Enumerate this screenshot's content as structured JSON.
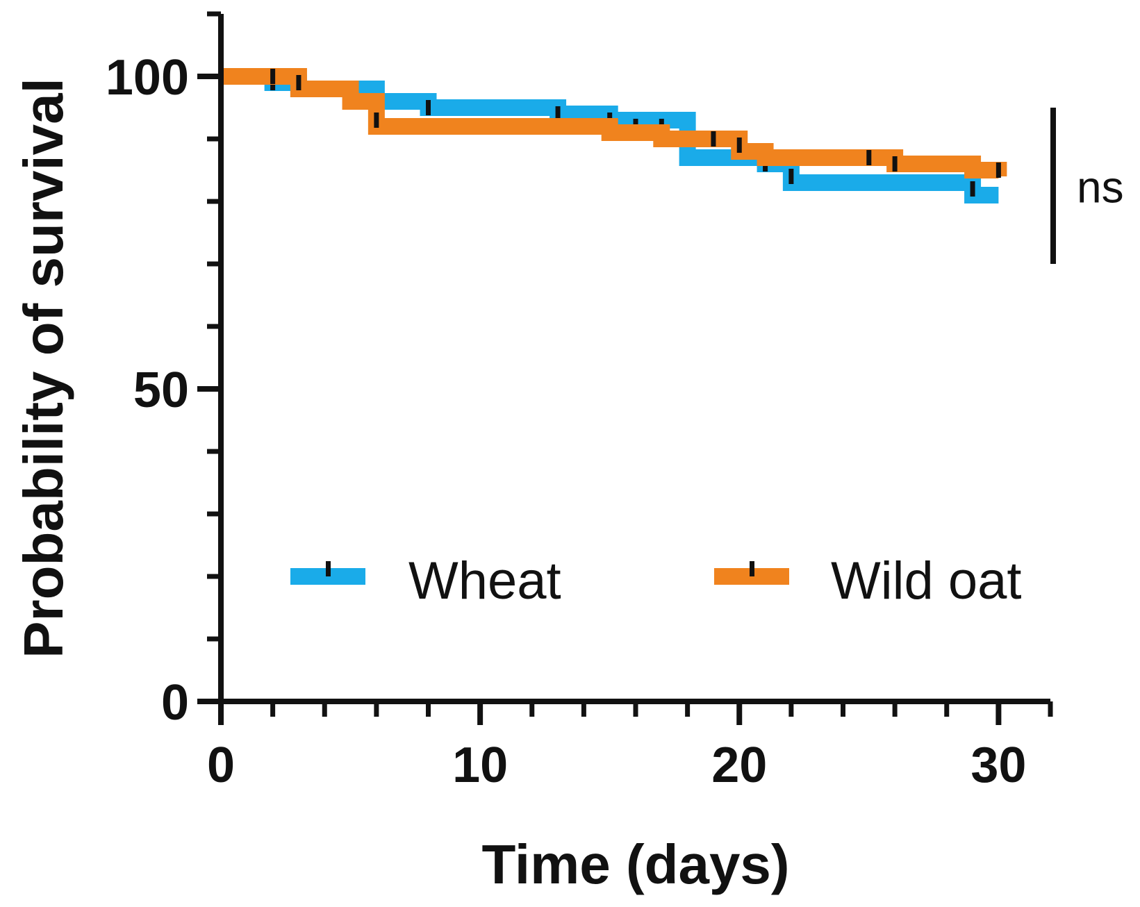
{
  "chart_data": {
    "type": "line",
    "subtype": "kaplan-meier step",
    "xlabel": "Time (days)",
    "ylabel": "Probability of survival",
    "xlim": [
      0,
      32
    ],
    "ylim": [
      0,
      100
    ],
    "x_ticks": [
      0,
      10,
      20,
      30
    ],
    "x_minor_ticks": [
      2,
      4,
      6,
      8,
      12,
      14,
      16,
      18,
      22,
      24,
      26,
      28,
      32
    ],
    "y_ticks": [
      0,
      50,
      100
    ],
    "y_minor_ticks": [
      10,
      20,
      30,
      40,
      60,
      70,
      80,
      90,
      110
    ],
    "grid": false,
    "legend": "bottom-center",
    "annotation": {
      "text": "ns",
      "y_range": [
        70,
        95
      ]
    },
    "series": [
      {
        "name": "Wheat",
        "color": "#1AABE9",
        "steps": [
          [
            0,
            100
          ],
          [
            2,
            99
          ],
          [
            3,
            98
          ],
          [
            6,
            96
          ],
          [
            8,
            95
          ],
          [
            13,
            94
          ],
          [
            15,
            93
          ],
          [
            18,
            87
          ],
          [
            21,
            86
          ],
          [
            22,
            83
          ],
          [
            29,
            81
          ],
          [
            30,
            81
          ]
        ],
        "censored": [
          [
            2,
            99
          ],
          [
            5,
            98
          ],
          [
            6,
            96
          ],
          [
            8,
            95
          ],
          [
            13,
            94
          ],
          [
            15,
            93
          ],
          [
            16,
            92
          ],
          [
            17,
            92
          ],
          [
            21,
            86
          ],
          [
            22,
            84
          ],
          [
            29,
            82
          ]
        ]
      },
      {
        "name": "Wild oat",
        "color": "#F0831E",
        "steps": [
          [
            0,
            100
          ],
          [
            3,
            98
          ],
          [
            5,
            96
          ],
          [
            6,
            92
          ],
          [
            15,
            91
          ],
          [
            17,
            90
          ],
          [
            18,
            90
          ],
          [
            20,
            88
          ],
          [
            21,
            87
          ],
          [
            26,
            86
          ],
          [
            29,
            85
          ],
          [
            30,
            84
          ]
        ],
        "censored": [
          [
            2,
            100
          ],
          [
            3,
            99
          ],
          [
            6,
            93
          ],
          [
            19,
            90
          ],
          [
            20,
            89
          ],
          [
            25,
            87
          ],
          [
            26,
            86
          ],
          [
            30,
            85
          ]
        ]
      }
    ]
  }
}
